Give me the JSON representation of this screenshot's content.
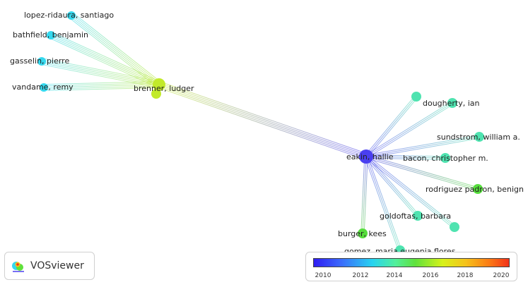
{
  "nodes": [
    {
      "id": "lopez",
      "label": "lopez-ridaura, santiago",
      "color": "#35d8ee"
    },
    {
      "id": "bathfield",
      "label": "bathfield, benjamin",
      "color": "#35d8ee"
    },
    {
      "id": "gasselin",
      "label": "gasselin, pierre",
      "color": "#35d8ee"
    },
    {
      "id": "vandame",
      "label": "vandame, remy",
      "color": "#35d8ee"
    },
    {
      "id": "brenner",
      "label": "brenner, ludger",
      "color": "#c2ea2a"
    },
    {
      "id": "eakin",
      "label": "eakin, hallie",
      "color": "#4a3ff0"
    },
    {
      "id": "dougherty",
      "label": "dougherty, ian",
      "color": "#4fe3b0"
    },
    {
      "id": "dougherty_u",
      "label": "",
      "color": "#4fe3b0"
    },
    {
      "id": "sundstrom",
      "label": "sundstrom, william a.",
      "color": "#4fe3b0"
    },
    {
      "id": "bacon",
      "label": "bacon, christopher m.",
      "color": "#4fe3b0"
    },
    {
      "id": "rodriguez",
      "label": "rodriguez padron, benign",
      "color": "#56dd3c"
    },
    {
      "id": "goldoftas",
      "label": "goldoftas, barbara",
      "color": "#4fe3b0"
    },
    {
      "id": "goldoftas_u",
      "label": "",
      "color": "#4fe3b0"
    },
    {
      "id": "burger",
      "label": "burger, kees",
      "color": "#56dd3c"
    },
    {
      "id": "gomez",
      "label": "gomez, maria eugenia flores",
      "color": "#4fe3b0"
    }
  ],
  "edges": [
    [
      "lopez",
      "brenner"
    ],
    [
      "bathfield",
      "brenner"
    ],
    [
      "gasselin",
      "brenner"
    ],
    [
      "vandame",
      "brenner"
    ],
    [
      "brenner",
      "eakin"
    ],
    [
      "eakin",
      "dougherty"
    ],
    [
      "eakin",
      "dougherty_u"
    ],
    [
      "eakin",
      "sundstrom"
    ],
    [
      "eakin",
      "bacon"
    ],
    [
      "eakin",
      "rodriguez"
    ],
    [
      "eakin",
      "goldoftas"
    ],
    [
      "eakin",
      "goldoftas_u"
    ],
    [
      "eakin",
      "burger"
    ],
    [
      "eakin",
      "gomez"
    ]
  ],
  "logo": {
    "text": "VOSviewer"
  },
  "legend": {
    "ticks": [
      "2010",
      "2012",
      "2014",
      "2016",
      "2018",
      "2020"
    ]
  }
}
